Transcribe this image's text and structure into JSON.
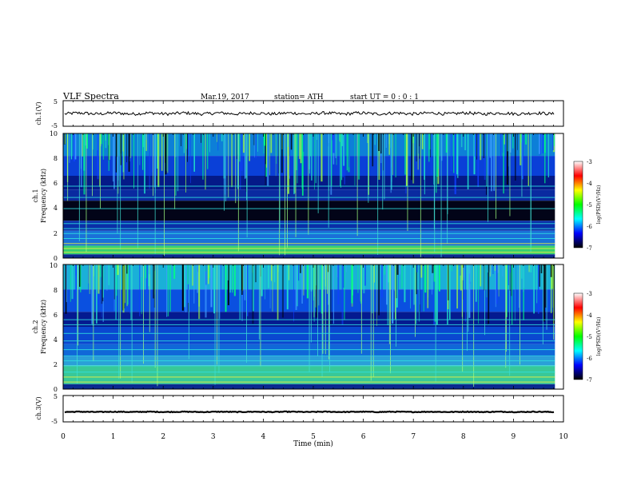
{
  "header": {
    "title": "VLF  Spectra",
    "date": "Mar.19, 2017",
    "station": "station= ATH",
    "start": "start  UT  =   0 : 0  : 1"
  },
  "chart_data": [
    {
      "type": "line",
      "name": "ch1-waveform",
      "ylabel": "ch.1(V)",
      "ylim": [
        -5,
        5
      ],
      "yticks": [
        "5",
        "-5"
      ],
      "xlim": [
        0,
        10
      ],
      "data_end_min": 9.83,
      "level": 0.0,
      "ripple": 0.6,
      "color": "#000000"
    },
    {
      "type": "heatmap",
      "name": "ch1-spectrogram",
      "ylabel_lines": [
        "ch.1",
        "Frequency  (kHz)"
      ],
      "ylim": [
        0,
        10
      ],
      "yticks": [
        "0",
        "2",
        "4",
        "6",
        "8",
        "10"
      ],
      "xlim": [
        0,
        10
      ],
      "data_end_min": 9.83,
      "colorbar": {
        "label": "log(PSD)(V²/Hz)",
        "range": [
          -7,
          -3
        ],
        "ticks": [
          "-3",
          "-4",
          "-5",
          "-6",
          "-7"
        ],
        "colors": [
          "#ffffff",
          "#ff0000",
          "#ffff00",
          "#00ff00",
          "#00ffff",
          "#0000ff",
          "#000000"
        ]
      }
    },
    {
      "type": "heatmap",
      "name": "ch2-spectrogram",
      "ylabel_lines": [
        "ch.2",
        "Frequency  (kHz)"
      ],
      "ylim": [
        0,
        10
      ],
      "yticks": [
        "0",
        "2",
        "4",
        "6",
        "8",
        "10"
      ],
      "xlim": [
        0,
        10
      ],
      "data_end_min": 9.83,
      "colorbar": {
        "label": "log(PSD)(V²/Hz)",
        "range": [
          -7,
          -3
        ],
        "ticks": [
          "-3",
          "-4",
          "-5",
          "-6",
          "-7"
        ],
        "colors": [
          "#ffffff",
          "#ff0000",
          "#ffff00",
          "#00ff00",
          "#00ffff",
          "#0000ff",
          "#000000"
        ]
      }
    },
    {
      "type": "line",
      "name": "ch3-waveform",
      "ylabel": "ch.3(V)",
      "ylim": [
        -5,
        5
      ],
      "yticks": [
        "5",
        "-5"
      ],
      "xlim": [
        0,
        10
      ],
      "data_end_min": 9.83,
      "level": -1.2,
      "ripple": 0.15,
      "color": "#000000"
    }
  ],
  "x_axis": {
    "label": "Time  (min)",
    "ticks": [
      "0",
      "1",
      "2",
      "3",
      "4",
      "5",
      "6",
      "7",
      "8",
      "9",
      "10"
    ]
  }
}
